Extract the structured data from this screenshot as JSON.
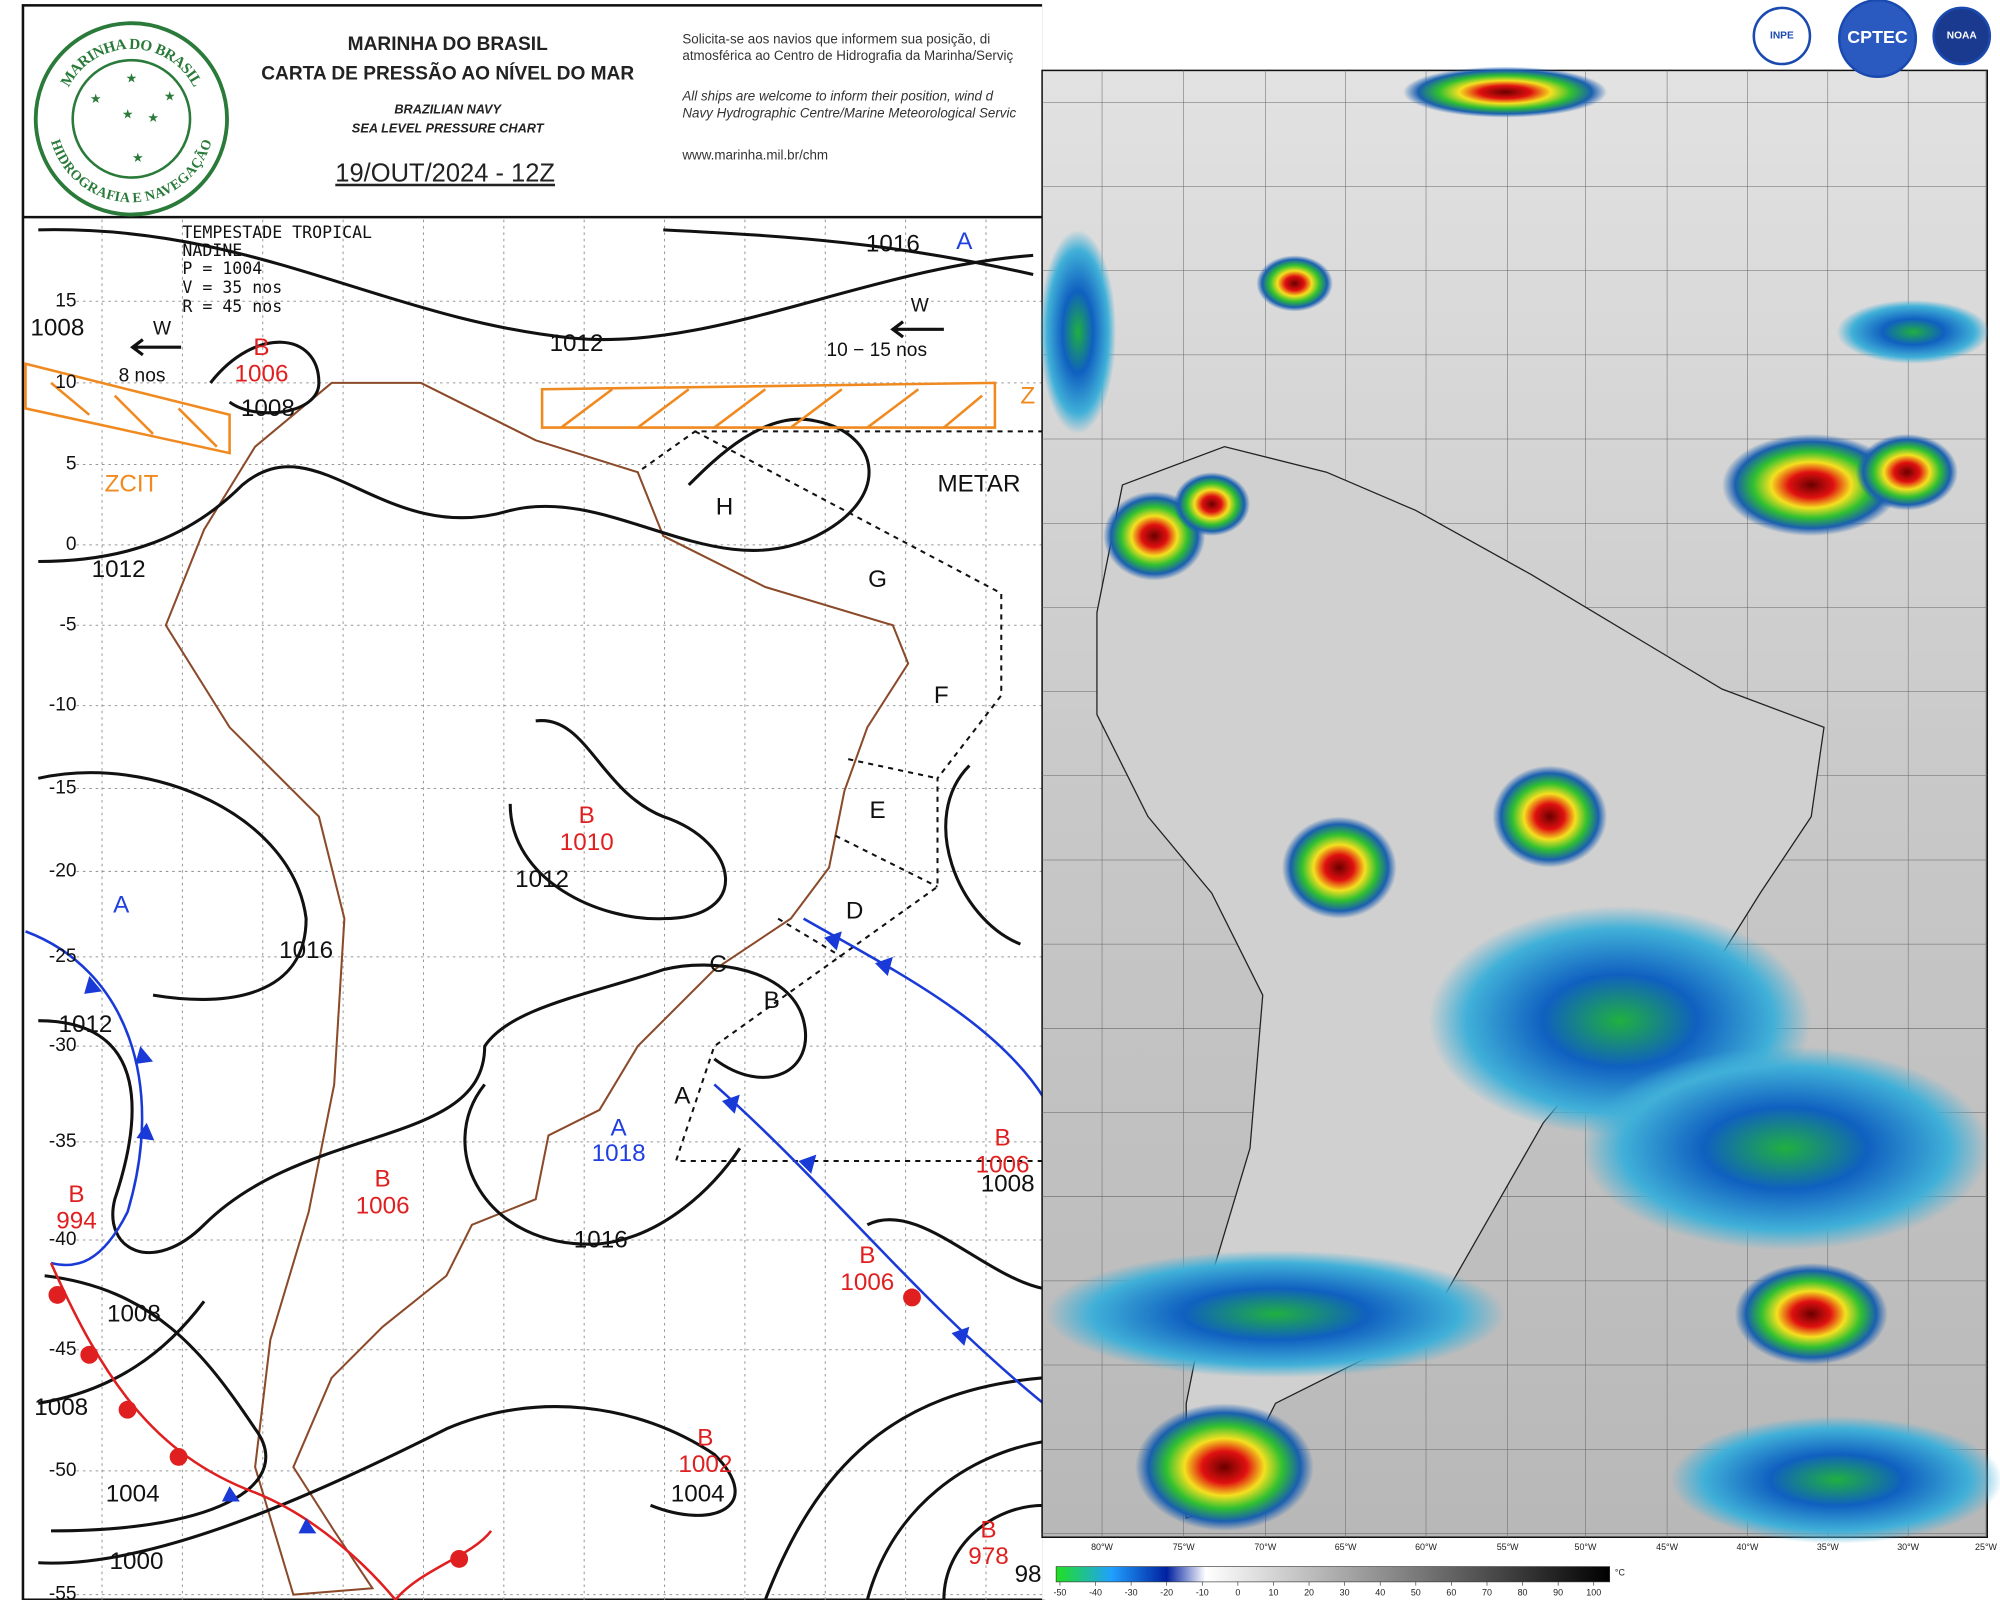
{
  "header": {
    "title": "MARINHA DO BRASIL",
    "subtitle": "CARTA DE PRESSÃO AO NÍVEL DO MAR",
    "title_en": "BRAZILIAN NAVY",
    "subtitle_en": "SEA LEVEL PRESSURE CHART",
    "date": "19/OUT/2024 - 12Z"
  },
  "logo": {
    "top": "MARINHA DO BRASIL",
    "bottom": "HIDROGRAFIA E NAVEGAÇÃO"
  },
  "notice": [
    "Solicita-se aos navios que informem sua posição, di",
    "atmosférica ao Centro de Hidrografia da Marinha/Serviç",
    "All ships are welcome to inform their position, wind d",
    "Navy Hydrographic Centre/Marine Meteorological Servic",
    "www.marinha.mil.br/chm"
  ],
  "map": {
    "storm": [
      "TEMPESTADE TROPICAL",
      "NADINE",
      "P = 1004",
      "V = 35 nos",
      "R = 45 nos"
    ],
    "latitude_labels": [
      "15",
      "10",
      "5",
      "0",
      "-5",
      "-10",
      "-15",
      "-20",
      "-25",
      "-30",
      "-35",
      "-40",
      "-45",
      "-50",
      "-55"
    ],
    "isobar_labels": [
      "1008",
      "1012",
      "1016",
      "1012",
      "1008",
      "1012",
      "1016",
      "1012",
      "1016",
      "1008",
      "1008",
      "1004",
      "1000",
      "1004",
      "1008",
      "98"
    ],
    "low_centers": [
      {
        "letter": "B",
        "value": "1006"
      },
      {
        "letter": "B",
        "value": "1010"
      },
      {
        "letter": "B",
        "value": "1006"
      },
      {
        "letter": "B",
        "value": "994"
      },
      {
        "letter": "B",
        "value": "1006"
      },
      {
        "letter": "B",
        "value": "1006"
      },
      {
        "letter": "B",
        "value": "1002"
      },
      {
        "letter": "B",
        "value": "978"
      }
    ],
    "high_centers": [
      {
        "letter": "A",
        "value": ""
      },
      {
        "letter": "A",
        "value": ""
      },
      {
        "letter": "A",
        "value": "1018"
      }
    ],
    "areas": [
      "H",
      "G",
      "F",
      "E",
      "D",
      "C",
      "B",
      "A"
    ],
    "annotations": {
      "metarea": "METAR",
      "itcz": "ZCIT",
      "itcz_edge": "Z",
      "wind_east": "W",
      "wind_east_speed": "10 − 15 nos",
      "wind_west": "W",
      "wind_west_speed": "8 nos"
    }
  },
  "satellite": {
    "logos": [
      "INPE",
      "CPTEC",
      "NOAA"
    ],
    "longitude_labels": [
      "80°W",
      "75°W",
      "70°W",
      "65°W",
      "60°W",
      "55°W",
      "50°W",
      "45°W",
      "40°W",
      "35°W",
      "30°W",
      "25°W"
    ],
    "colorbar": {
      "ticks": [
        "-50",
        "-40",
        "-30",
        "-20",
        "-10",
        "0",
        "10",
        "20",
        "30",
        "40",
        "50",
        "60",
        "70",
        "80",
        "90",
        "100"
      ],
      "unit": "°C"
    }
  }
}
